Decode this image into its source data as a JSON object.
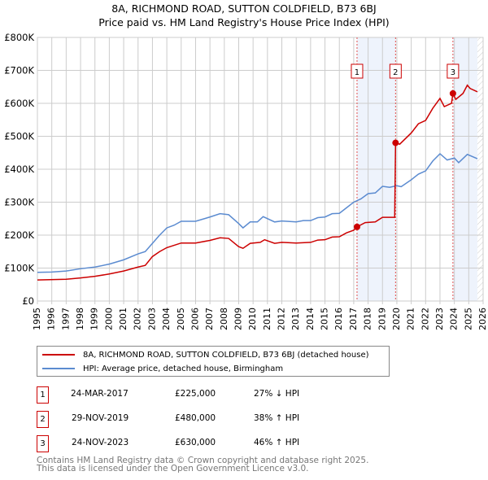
{
  "title": "8A, RICHMOND ROAD, SUTTON COLDFIELD, B73 6BJ",
  "subtitle": "Price paid vs. HM Land Registry's House Price Index (HPI)",
  "chart_data": {
    "type": "line",
    "title": "8A, RICHMOND ROAD, SUTTON COLDFIELD, B73 6BJ - Price paid vs. HM Land Registry's House Price Index (HPI)",
    "xlim": [
      1995,
      2026
    ],
    "ylim": [
      0,
      800000
    ],
    "x_ticks": [
      "1995",
      "1996",
      "1997",
      "1998",
      "1999",
      "2000",
      "2001",
      "2002",
      "2003",
      "2004",
      "2005",
      "2006",
      "2007",
      "2008",
      "2009",
      "2010",
      "2011",
      "2012",
      "2013",
      "2014",
      "2015",
      "2016",
      "2017",
      "2018",
      "2019",
      "2020",
      "2021",
      "2022",
      "2023",
      "2024",
      "2025",
      "2026"
    ],
    "y_ticks": [
      {
        "v": 0,
        "l": "£0"
      },
      {
        "v": 100000,
        "l": "£100K"
      },
      {
        "v": 200000,
        "l": "£200K"
      },
      {
        "v": 300000,
        "l": "£300K"
      },
      {
        "v": 400000,
        "l": "£400K"
      },
      {
        "v": 500000,
        "l": "£500K"
      },
      {
        "v": 600000,
        "l": "£600K"
      },
      {
        "v": 700000,
        "l": "£700K"
      },
      {
        "v": 800000,
        "l": "£800K"
      }
    ],
    "series": [
      {
        "name": "8A, RICHMOND ROAD, SUTTON COLDFIELD, B73 6BJ (detached house)",
        "color": "#cc0000",
        "points": [
          [
            1995,
            64
          ],
          [
            1997,
            66
          ],
          [
            1998,
            70
          ],
          [
            1999,
            75
          ],
          [
            2000,
            82
          ],
          [
            2001,
            91
          ],
          [
            2002,
            103
          ],
          [
            2002.5,
            108
          ],
          [
            2003,
            135
          ],
          [
            2003.5,
            150
          ],
          [
            2004,
            162
          ],
          [
            2005,
            176
          ],
          [
            2006,
            176
          ],
          [
            2007,
            184
          ],
          [
            2007.7,
            192
          ],
          [
            2008.3,
            190
          ],
          [
            2009,
            165
          ],
          [
            2009.3,
            160
          ],
          [
            2009.8,
            175
          ],
          [
            2010.5,
            178
          ],
          [
            2010.8,
            186
          ],
          [
            2011.5,
            175
          ],
          [
            2012,
            178
          ],
          [
            2013,
            176
          ],
          [
            2014,
            178
          ],
          [
            2014.5,
            185
          ],
          [
            2015,
            186
          ],
          [
            2015.5,
            194
          ],
          [
            2016,
            195
          ],
          [
            2016.5,
            207
          ],
          [
            2017,
            215
          ],
          [
            2017.23,
            225
          ],
          [
            2017.8,
            238
          ],
          [
            2018.5,
            240
          ],
          [
            2019,
            254
          ],
          [
            2019.85,
            254
          ],
          [
            2019.91,
            480
          ],
          [
            2020.2,
            476
          ],
          [
            2021,
            510
          ],
          [
            2021.5,
            538
          ],
          [
            2022,
            548
          ],
          [
            2022.5,
            585
          ],
          [
            2023,
            615
          ],
          [
            2023.3,
            590
          ],
          [
            2023.8,
            600
          ],
          [
            2023.9,
            630
          ],
          [
            2024.1,
            612
          ],
          [
            2024.6,
            630
          ],
          [
            2024.9,
            655
          ],
          [
            2025.1,
            645
          ],
          [
            2025.6,
            635
          ]
        ]
      },
      {
        "name": "HPI: Average price, detached house, Birmingham",
        "color": "#5b8bd0",
        "points": [
          [
            1995,
            87
          ],
          [
            1996,
            88
          ],
          [
            1997,
            91
          ],
          [
            1998,
            98
          ],
          [
            1999,
            103
          ],
          [
            2000,
            112
          ],
          [
            2001,
            125
          ],
          [
            2002,
            143
          ],
          [
            2002.5,
            150
          ],
          [
            2003,
            175
          ],
          [
            2003.5,
            200
          ],
          [
            2004,
            222
          ],
          [
            2004.5,
            230
          ],
          [
            2005,
            242
          ],
          [
            2006,
            242
          ],
          [
            2007,
            255
          ],
          [
            2007.7,
            265
          ],
          [
            2008.3,
            262
          ],
          [
            2009,
            235
          ],
          [
            2009.3,
            222
          ],
          [
            2009.8,
            240
          ],
          [
            2010.3,
            240
          ],
          [
            2010.7,
            256
          ],
          [
            2011.5,
            240
          ],
          [
            2012,
            243
          ],
          [
            2013,
            240
          ],
          [
            2013.5,
            244
          ],
          [
            2014,
            244
          ],
          [
            2014.5,
            253
          ],
          [
            2015,
            255
          ],
          [
            2015.5,
            265
          ],
          [
            2016,
            266
          ],
          [
            2016.5,
            283
          ],
          [
            2017,
            300
          ],
          [
            2017.5,
            310
          ],
          [
            2018,
            326
          ],
          [
            2018.5,
            328
          ],
          [
            2019,
            348
          ],
          [
            2019.5,
            345
          ],
          [
            2020,
            350
          ],
          [
            2020.3,
            347
          ],
          [
            2021,
            368
          ],
          [
            2021.5,
            385
          ],
          [
            2022,
            395
          ],
          [
            2022.5,
            425
          ],
          [
            2023,
            447
          ],
          [
            2023.5,
            428
          ],
          [
            2024,
            434
          ],
          [
            2024.3,
            420
          ],
          [
            2024.9,
            445
          ],
          [
            2025.6,
            432
          ]
        ]
      }
    ],
    "y_unit": "thousand GBP",
    "shaded_ranges": [
      [
        2017.23,
        2019.91
      ],
      [
        2023.9,
        2025.6
      ]
    ],
    "forecast_hatch_from": 2025.6,
    "sales": [
      {
        "label": "1",
        "x": 2017.23,
        "y": 225
      },
      {
        "label": "2",
        "x": 2019.91,
        "y": 480
      },
      {
        "label": "3",
        "x": 2023.9,
        "y": 630
      }
    ]
  },
  "legend": [
    "8A, RICHMOND ROAD, SUTTON COLDFIELD, B73 6BJ (detached house)",
    "HPI: Average price, detached house, Birmingham"
  ],
  "transactions": [
    {
      "num": "1",
      "date": "24-MAR-2017",
      "price": "£225,000",
      "hpi": "27% ↓ HPI"
    },
    {
      "num": "2",
      "date": "29-NOV-2019",
      "price": "£480,000",
      "hpi": "38% ↑ HPI"
    },
    {
      "num": "3",
      "date": "24-NOV-2023",
      "price": "£630,000",
      "hpi": "46% ↑ HPI"
    }
  ],
  "footer": [
    "Contains HM Land Registry data © Crown copyright and database right 2025.",
    "This data is licensed under the Open Government Licence v3.0."
  ]
}
